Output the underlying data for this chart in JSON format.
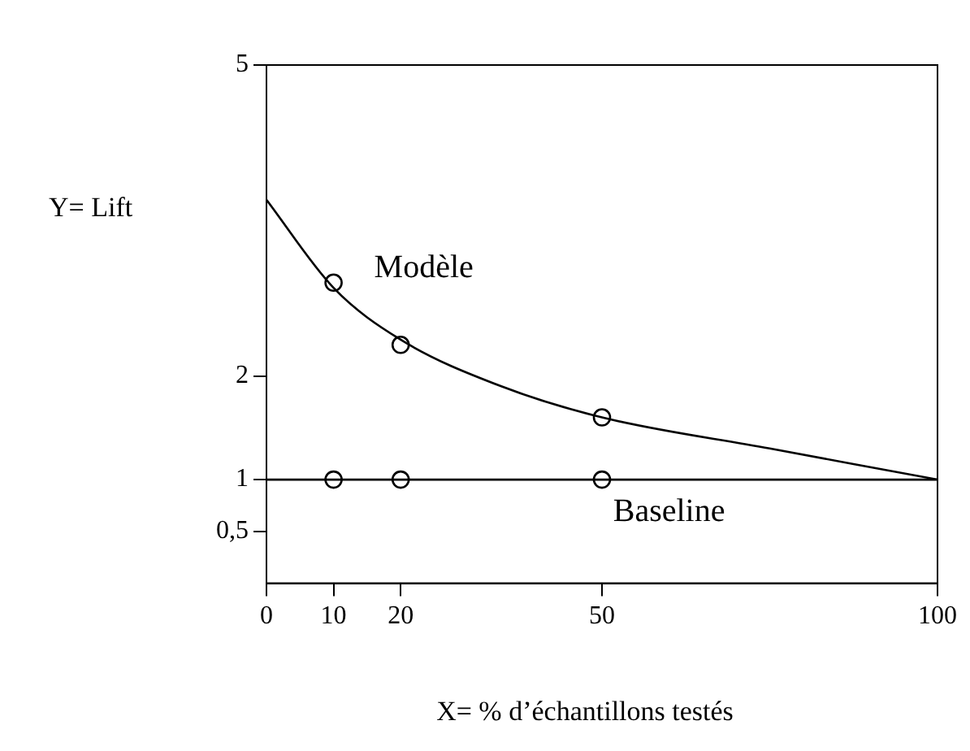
{
  "chart_data": {
    "type": "line",
    "xlabel": "X= % d’échantillons testés",
    "ylabel": "Y= Lift",
    "xlim": [
      0,
      100
    ],
    "ylim": [
      0,
      5
    ],
    "xticks": [
      0,
      10,
      20,
      50,
      100
    ],
    "yticks": [
      {
        "value": 0.5,
        "label": "0,5"
      },
      1,
      2,
      5
    ],
    "grid": false,
    "legend": false,
    "series": [
      {
        "name": "Modèle",
        "type": "line",
        "marker": "none",
        "color": "#000000",
        "x": [
          0,
          10,
          20,
          35,
          50,
          75,
          100
        ],
        "values": [
          3.7,
          2.85,
          2.35,
          1.9,
          1.6,
          1.3,
          1
        ]
      },
      {
        "type": "scatter",
        "marker": "circle",
        "color": "#000000",
        "x": [
          10,
          20,
          50
        ],
        "values": [
          2.9,
          2.3,
          1.6
        ]
      },
      {
        "name": "Baseline",
        "type": "line",
        "marker": "none",
        "color": "#000000",
        "x": [
          0,
          100
        ],
        "values": [
          1,
          1
        ]
      },
      {
        "type": "scatter",
        "marker": "circle",
        "color": "#000000",
        "x": [
          10,
          20,
          50
        ],
        "values": [
          1,
          1,
          1
        ]
      }
    ]
  }
}
